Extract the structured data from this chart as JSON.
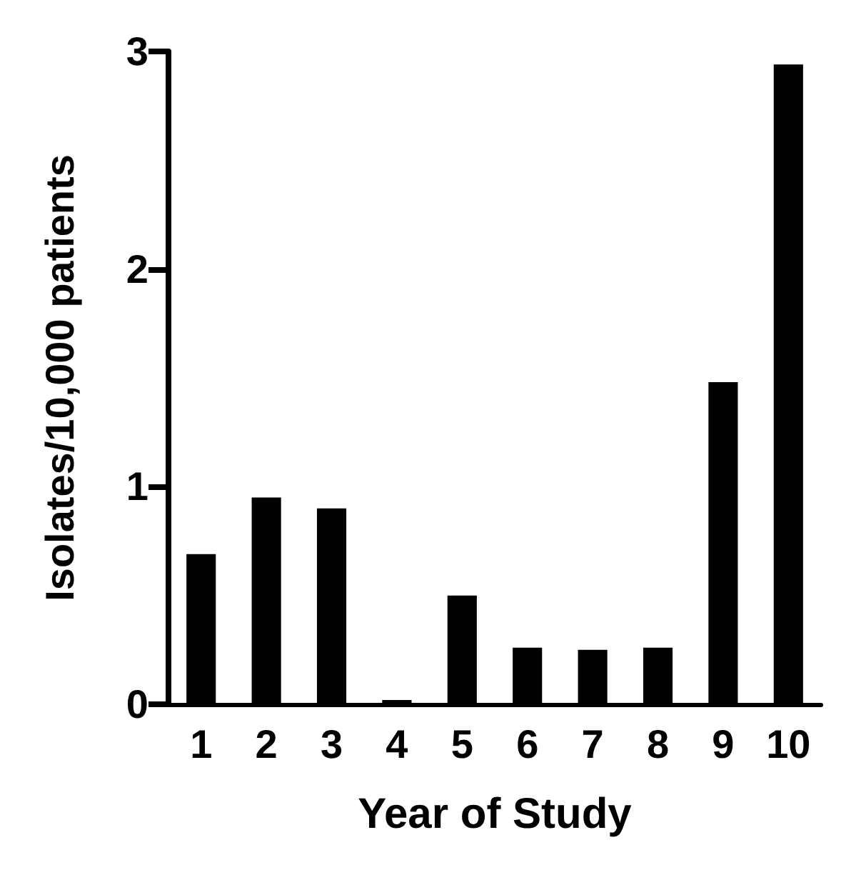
{
  "chart_data": {
    "type": "bar",
    "xlabel": "Year of Study",
    "ylabel": "Isolates/10,000 patients",
    "categories": [
      "1",
      "2",
      "3",
      "4",
      "5",
      "6",
      "7",
      "8",
      "9",
      "10"
    ],
    "values": [
      0.69,
      0.95,
      0.9,
      0.02,
      0.5,
      0.26,
      0.25,
      0.26,
      1.48,
      2.94
    ],
    "color": "#000000",
    "ylim": [
      0,
      3
    ],
    "yticks": [
      0,
      1,
      2,
      3
    ],
    "grid": false
  }
}
